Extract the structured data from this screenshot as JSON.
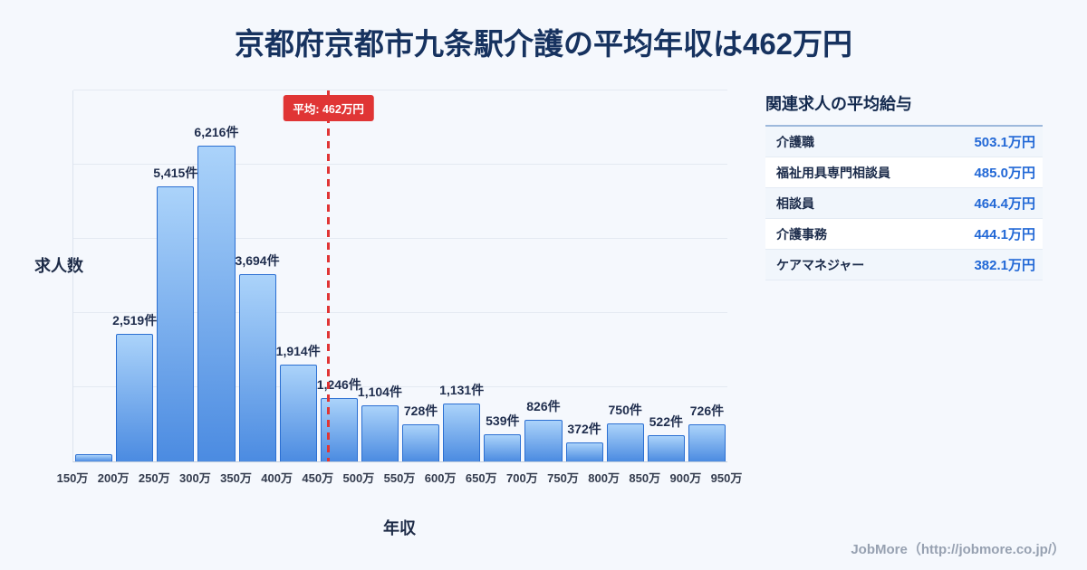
{
  "chart_data": [
    {
      "type": "bar",
      "title": "京都府京都市九条駅介護の平均年収は462万円",
      "xlabel": "年収",
      "ylabel": "求人数",
      "ylim": [
        0,
        7300
      ],
      "grid": true,
      "x_range": [
        150,
        950
      ],
      "bin_width": 50,
      "x_ticks": [
        "150万",
        "200万",
        "250万",
        "300万",
        "350万",
        "400万",
        "450万",
        "500万",
        "550万",
        "600万",
        "650万",
        "700万",
        "750万",
        "800万",
        "850万",
        "900万",
        "950万"
      ],
      "values": [
        140,
        2519,
        5415,
        6216,
        3694,
        1914,
        1246,
        1104,
        728,
        1131,
        539,
        826,
        372,
        750,
        522,
        726
      ],
      "bar_labels": [
        "",
        "2,519件",
        "5,415件",
        "6,216件",
        "3,694件",
        "1,914件",
        "1,246件",
        "1,104件",
        "728件",
        "1,131件",
        "539件",
        "826件",
        "372件",
        "750件",
        "522件",
        "726件"
      ],
      "average": {
        "value": 462,
        "label": "平均: 462万円"
      },
      "colors": {
        "bar_top": "#abd3fa",
        "bar_bottom": "#4b8be1",
        "bar_border": "#2b6fd2",
        "average_line": "#e03535",
        "title_text": "#16325f"
      }
    },
    {
      "type": "table",
      "title": "関連求人の平均給与",
      "rows": [
        {
          "name": "介護職",
          "value": "503.1万円"
        },
        {
          "name": "福祉用具専門相談員",
          "value": "485.0万円"
        },
        {
          "name": "相談員",
          "value": "464.4万円"
        },
        {
          "name": "介護事務",
          "value": "444.1万円"
        },
        {
          "name": "ケアマネジャー",
          "value": "382.1万円"
        }
      ],
      "value_color": "#2268d6"
    }
  ],
  "footer": {
    "credit": "JobMore（http://jobmore.co.jp/）"
  }
}
